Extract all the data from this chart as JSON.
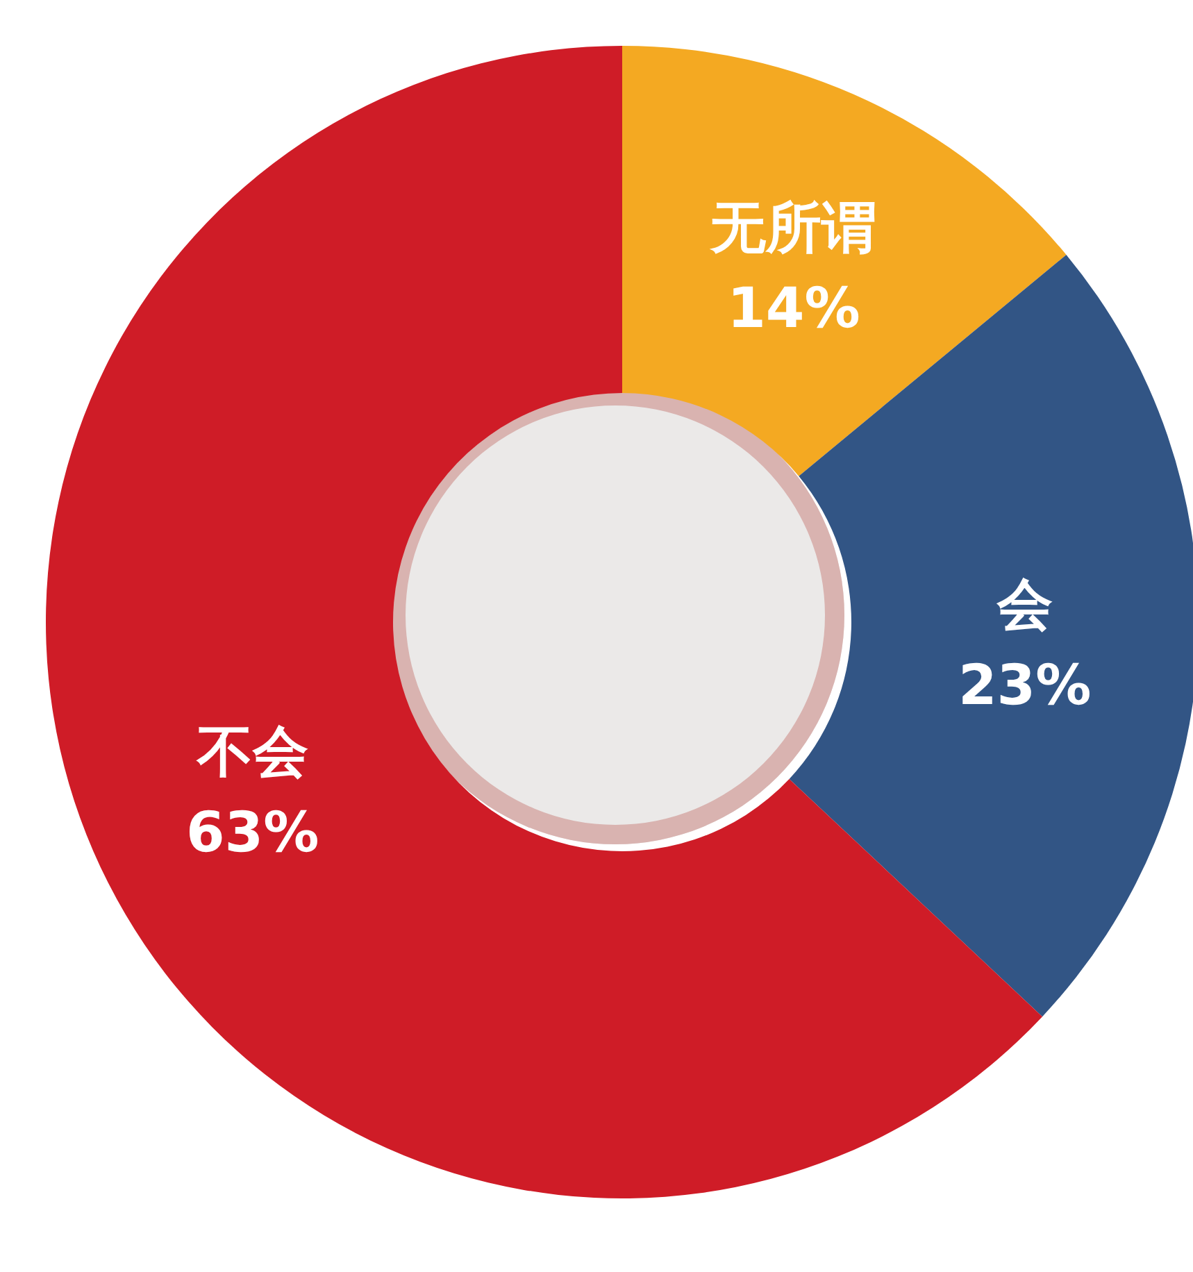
{
  "chart_data": {
    "type": "donut",
    "categories": [
      "无所谓",
      "会",
      "不会"
    ],
    "values": [
      14,
      23,
      63
    ],
    "colors": [
      "#f4a922",
      "#325585",
      "#cf1c27"
    ],
    "value_labels": [
      "14%",
      "23%",
      "63%"
    ]
  }
}
